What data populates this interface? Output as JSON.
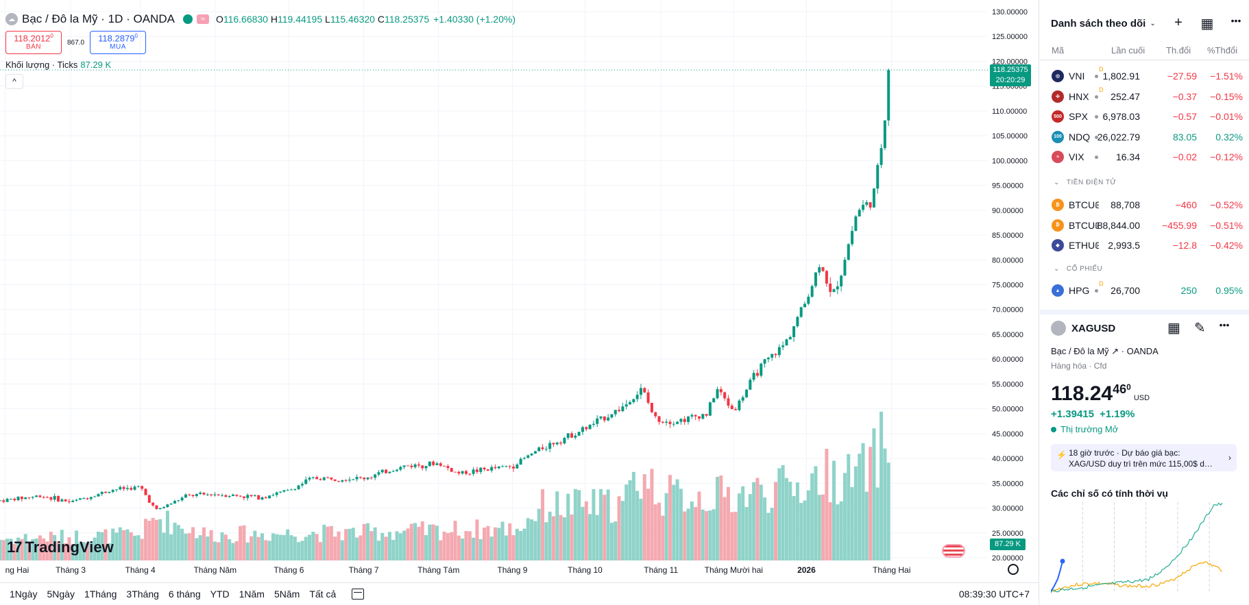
{
  "chart": {
    "symbol_title": "Bạc / Đô la Mỹ · 1D · OANDA",
    "ohlc": {
      "o_label": "O",
      "o": "116.66830",
      "h_label": "H",
      "h": "119.44195",
      "l_label": "L",
      "l": "115.46320",
      "c_label": "C",
      "c": "118.25375"
    },
    "change": "+1.40330 (+1.20%)",
    "sell": {
      "price": "118.2012",
      "sup": "0",
      "label": "BÁN"
    },
    "buy": {
      "price": "118.2879",
      "sup": "0",
      "label": "MUA"
    },
    "spread": "867.0",
    "volume_label": "Khối lượng · Ticks",
    "volume_value": "87.29 K",
    "current_price": "118.25375",
    "countdown": "20:20:29",
    "volume_tag": "87.29 K",
    "logo_text": "TradingView",
    "collapse_glyph": "^",
    "price_axis": [
      "130.00000",
      "125.00000",
      "120.00000",
      "115.00000",
      "110.00000",
      "105.00000",
      "100.00000",
      "95.00000",
      "90.00000",
      "85.00000",
      "80.00000",
      "75.00000",
      "70.00000",
      "65.00000",
      "60.00000",
      "55.00000",
      "50.00000",
      "45.00000",
      "40.00000",
      "35.00000",
      "30.00000",
      "25.00000",
      "20.00000"
    ],
    "time_axis": [
      {
        "label": "ng Hai",
        "bold": false
      },
      {
        "label": "Tháng 3",
        "bold": false
      },
      {
        "label": "Tháng 4",
        "bold": false
      },
      {
        "label": "Tháng Năm",
        "bold": false
      },
      {
        "label": "Tháng 6",
        "bold": false
      },
      {
        "label": "Tháng 7",
        "bold": false
      },
      {
        "label": "Tháng Tám",
        "bold": false
      },
      {
        "label": "Tháng 9",
        "bold": false
      },
      {
        "label": "Tháng 10",
        "bold": false
      },
      {
        "label": "Tháng 11",
        "bold": false
      },
      {
        "label": "Tháng Mười hai",
        "bold": false
      },
      {
        "label": "2026",
        "bold": true
      },
      {
        "label": "Tháng Hai",
        "bold": false
      }
    ],
    "time_axis_fractions": [
      0.005,
      0.068,
      0.135,
      0.207,
      0.278,
      0.35,
      0.422,
      0.493,
      0.563,
      0.636,
      0.706,
      0.776,
      0.858
    ]
  },
  "chart_data": {
    "type": "candlestick",
    "title": "Bạc / Đô la Mỹ · 1D · OANDA",
    "ylim": [
      20,
      130
    ],
    "anchors": [
      {
        "t": 0.0,
        "p": 31.5
      },
      {
        "t": 0.04,
        "p": 32.5
      },
      {
        "t": 0.068,
        "p": 31.2
      },
      {
        "t": 0.11,
        "p": 33.8
      },
      {
        "t": 0.135,
        "p": 34.2
      },
      {
        "t": 0.15,
        "p": 29.5
      },
      {
        "t": 0.18,
        "p": 32.5
      },
      {
        "t": 0.207,
        "p": 32.8
      },
      {
        "t": 0.25,
        "p": 32.2
      },
      {
        "t": 0.278,
        "p": 33.5
      },
      {
        "t": 0.3,
        "p": 36.0
      },
      {
        "t": 0.35,
        "p": 36.0
      },
      {
        "t": 0.39,
        "p": 38.5
      },
      {
        "t": 0.422,
        "p": 39.0
      },
      {
        "t": 0.44,
        "p": 37.0
      },
      {
        "t": 0.493,
        "p": 38.5
      },
      {
        "t": 0.52,
        "p": 42.0
      },
      {
        "t": 0.563,
        "p": 46.0
      },
      {
        "t": 0.6,
        "p": 50.5
      },
      {
        "t": 0.618,
        "p": 54.0
      },
      {
        "t": 0.63,
        "p": 48.0
      },
      {
        "t": 0.65,
        "p": 47.5
      },
      {
        "t": 0.68,
        "p": 49.0
      },
      {
        "t": 0.69,
        "p": 54.0
      },
      {
        "t": 0.706,
        "p": 49.5
      },
      {
        "t": 0.73,
        "p": 58.0
      },
      {
        "t": 0.755,
        "p": 63.0
      },
      {
        "t": 0.776,
        "p": 72.0
      },
      {
        "t": 0.79,
        "p": 80.0
      },
      {
        "t": 0.8,
        "p": 72.0
      },
      {
        "t": 0.81,
        "p": 78.0
      },
      {
        "t": 0.825,
        "p": 90.0
      },
      {
        "t": 0.84,
        "p": 92.0
      },
      {
        "t": 0.848,
        "p": 103.0
      },
      {
        "t": 0.852,
        "p": 110.0
      },
      {
        "t": 0.855,
        "p": 118.25
      }
    ],
    "volume_anchors": [
      {
        "t": 0.0,
        "v": 10
      },
      {
        "t": 0.135,
        "v": 12
      },
      {
        "t": 0.15,
        "v": 20
      },
      {
        "t": 0.2,
        "v": 12
      },
      {
        "t": 0.35,
        "v": 13
      },
      {
        "t": 0.5,
        "v": 15
      },
      {
        "t": 0.52,
        "v": 25
      },
      {
        "t": 0.6,
        "v": 26
      },
      {
        "t": 0.615,
        "v": 40
      },
      {
        "t": 0.64,
        "v": 30
      },
      {
        "t": 0.7,
        "v": 30
      },
      {
        "t": 0.776,
        "v": 35
      },
      {
        "t": 0.79,
        "v": 40
      },
      {
        "t": 0.82,
        "v": 38
      },
      {
        "t": 0.84,
        "v": 45
      },
      {
        "t": 0.848,
        "v": 55
      },
      {
        "t": 0.855,
        "v": 48
      }
    ]
  },
  "bottom_bar": {
    "ranges": [
      "1Ngày",
      "5Ngày",
      "1Tháng",
      "3Tháng",
      "6 tháng",
      "YTD",
      "1Năm",
      "5Năm",
      "Tất cả"
    ],
    "clock": "08:39:30 UTC+7"
  },
  "watchlist": {
    "title": "Danh sách theo dõi",
    "tools": [
      "+",
      "▦",
      "•••"
    ],
    "columns": {
      "symbol": "Mã",
      "last": "Lần cuối",
      "change": "Th.đổi",
      "pct": "%Thđổi"
    },
    "rows": [
      {
        "icon": "vn-index-icon",
        "icon_bg": "#1e2a5e",
        "icon_text": "◎",
        "symbol": "VNI",
        "sup": "D",
        "last": "1,802.91",
        "change": "−27.59",
        "pct": "−1.51%",
        "dir": "neg"
      },
      {
        "icon": "hnx-icon",
        "icon_bg": "#b22a2a",
        "icon_text": "✣",
        "symbol": "HNX",
        "sup": "D",
        "last": "252.47",
        "change": "−0.37",
        "pct": "−0.15%",
        "dir": "neg"
      },
      {
        "icon": "spx-icon",
        "icon_bg": "#c62828",
        "icon_text": "500",
        "symbol": "SPX",
        "sup": "",
        "last": "6,978.03",
        "change": "−0.57",
        "pct": "−0.01%",
        "dir": "neg"
      },
      {
        "icon": "ndq-icon",
        "icon_bg": "#1a8fb5",
        "icon_text": "100",
        "symbol": "NDQ",
        "sup": "",
        "last": "26,022.79",
        "change": "83.05",
        "pct": "0.32%",
        "dir": "pos"
      },
      {
        "icon": "us-flag-icon",
        "icon_bg": "#d94a5a",
        "icon_text": "≡",
        "symbol": "VIX",
        "sup": "",
        "last": "16.34",
        "change": "−0.02",
        "pct": "−0.12%",
        "dir": "neg"
      }
    ],
    "crypto_title": "TIỀN ĐIỆN TỬ",
    "crypto_rows": [
      {
        "icon": "bitcoin-icon",
        "icon_bg": "#f7931a",
        "icon_text": "₿",
        "symbol": "BTCUSD",
        "sup": "",
        "last": "88,708",
        "change": "−460",
        "pct": "−0.52%",
        "dir": "neg"
      },
      {
        "icon": "bitcoin-icon",
        "icon_bg": "#f7931a",
        "icon_text": "₿",
        "symbol": "BTCUSD",
        "sup": "",
        "last": "88,844.00",
        "change": "−455.99",
        "pct": "−0.51%",
        "dir": "neg"
      },
      {
        "icon": "ethereum-icon",
        "icon_bg": "#3c4a99",
        "icon_text": "◆",
        "symbol": "ETHUSD",
        "sup": "",
        "last": "2,993.5",
        "change": "−12.8",
        "pct": "−0.42%",
        "dir": "neg"
      }
    ],
    "stocks_title": "CỔ PHIẾU",
    "stock_rows": [
      {
        "icon": "hpg-icon",
        "icon_bg": "#3a6fd8",
        "icon_text": "▲",
        "symbol": "HPG",
        "sup": "D",
        "last": "26,700",
        "change": "250",
        "pct": "0.95%",
        "dir": "pos"
      }
    ]
  },
  "detail": {
    "symbol": "XAGUSD",
    "tools": [
      "▦",
      "✎",
      "•••"
    ],
    "description": "Bạc / Đô la Mỹ",
    "exchange": "OANDA",
    "category": "Hàng hóa · Cfd",
    "price_main": "118.24",
    "price_small": "46",
    "price_sup": "0",
    "currency": "USD",
    "change": "+1.39415",
    "change_pct": "+1.19%",
    "market_status": "Thị trường Mở",
    "news_time": "18 giờ trước ·",
    "news_line1": "Dự báo giá bạc:",
    "news_line2": "XAG/USD duy trì trên mức 115,00$ d…",
    "seasonal_title": "Các chỉ số có tính thời vụ"
  },
  "colors": {
    "up": "#089981",
    "down": "#f23645",
    "vol_up": "#8fd3c9",
    "vol_down": "#f4a9b0",
    "accent": "#2962ff"
  }
}
